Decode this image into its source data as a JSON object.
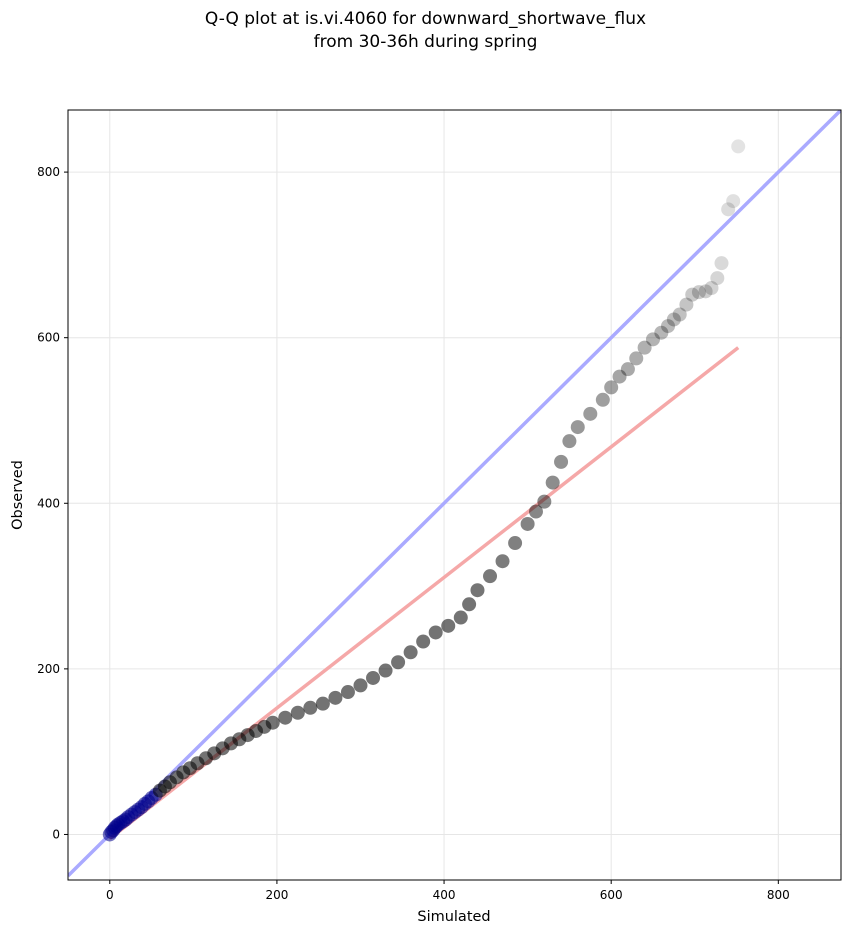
{
  "chart_data": {
    "type": "scatter",
    "title_line1": "Q-Q plot at is.vi.4060 for downward_shortwave_flux",
    "title_line2": "from 30-36h during spring",
    "xlabel": "Simulated",
    "ylabel": "Observed",
    "xlim": [
      -50,
      875
    ],
    "ylim": [
      -55,
      875
    ],
    "xticks": [
      0,
      200,
      400,
      600,
      800
    ],
    "yticks": [
      0,
      200,
      400,
      600,
      800
    ],
    "grid": true,
    "reference_lines": [
      {
        "kind": "identity",
        "color": "#aaaaff",
        "from": [
          -50,
          -50
        ],
        "to": [
          875,
          875
        ]
      },
      {
        "kind": "fit",
        "color": "#f5a8a8",
        "from": [
          0,
          -5
        ],
        "to": [
          752,
          588
        ]
      }
    ],
    "series": [
      {
        "marker_color": "#000000",
        "points": [
          [
            0,
            0
          ],
          [
            2,
            3
          ],
          [
            4,
            5
          ],
          [
            6,
            8
          ],
          [
            8,
            10
          ],
          [
            10,
            12
          ],
          [
            13,
            14
          ],
          [
            16,
            16
          ],
          [
            19,
            18
          ],
          [
            22,
            21
          ],
          [
            26,
            24
          ],
          [
            30,
            27
          ],
          [
            34,
            30
          ],
          [
            38,
            33
          ],
          [
            42,
            37
          ],
          [
            46,
            40
          ],
          [
            50,
            44
          ],
          [
            55,
            48
          ],
          [
            60,
            53
          ],
          [
            66,
            58
          ],
          [
            72,
            63
          ],
          [
            80,
            69
          ],
          [
            88,
            75
          ],
          [
            96,
            80
          ],
          [
            105,
            86
          ],
          [
            115,
            92
          ],
          [
            125,
            98
          ],
          [
            135,
            104
          ],
          [
            145,
            110
          ],
          [
            155,
            115
          ],
          [
            165,
            120
          ],
          [
            175,
            125
          ],
          [
            185,
            130
          ],
          [
            195,
            135
          ],
          [
            210,
            141
          ],
          [
            225,
            147
          ],
          [
            240,
            153
          ],
          [
            255,
            158
          ],
          [
            270,
            165
          ],
          [
            285,
            172
          ],
          [
            300,
            180
          ],
          [
            315,
            189
          ],
          [
            330,
            198
          ],
          [
            345,
            208
          ],
          [
            360,
            220
          ],
          [
            375,
            233
          ],
          [
            390,
            244
          ],
          [
            405,
            252
          ],
          [
            420,
            262
          ],
          [
            430,
            278
          ],
          [
            440,
            295
          ],
          [
            455,
            312
          ],
          [
            470,
            330
          ],
          [
            485,
            352
          ],
          [
            500,
            375
          ],
          [
            510,
            390
          ],
          [
            520,
            402
          ],
          [
            530,
            425
          ],
          [
            540,
            450
          ],
          [
            550,
            475
          ],
          [
            560,
            492
          ],
          [
            575,
            508
          ],
          [
            590,
            525
          ],
          [
            600,
            540
          ],
          [
            610,
            553
          ],
          [
            620,
            562
          ],
          [
            630,
            575
          ],
          [
            640,
            588
          ],
          [
            650,
            598
          ],
          [
            660,
            606
          ],
          [
            668,
            614
          ],
          [
            675,
            622
          ],
          [
            682,
            628
          ],
          [
            690,
            640
          ],
          [
            697,
            652
          ],
          [
            705,
            655
          ],
          [
            713,
            656
          ],
          [
            720,
            660
          ],
          [
            727,
            672
          ],
          [
            732,
            690
          ],
          [
            740,
            755
          ],
          [
            746,
            765
          ],
          [
            752,
            831
          ]
        ]
      }
    ],
    "lower_tail_marker_color": "#00008b"
  }
}
